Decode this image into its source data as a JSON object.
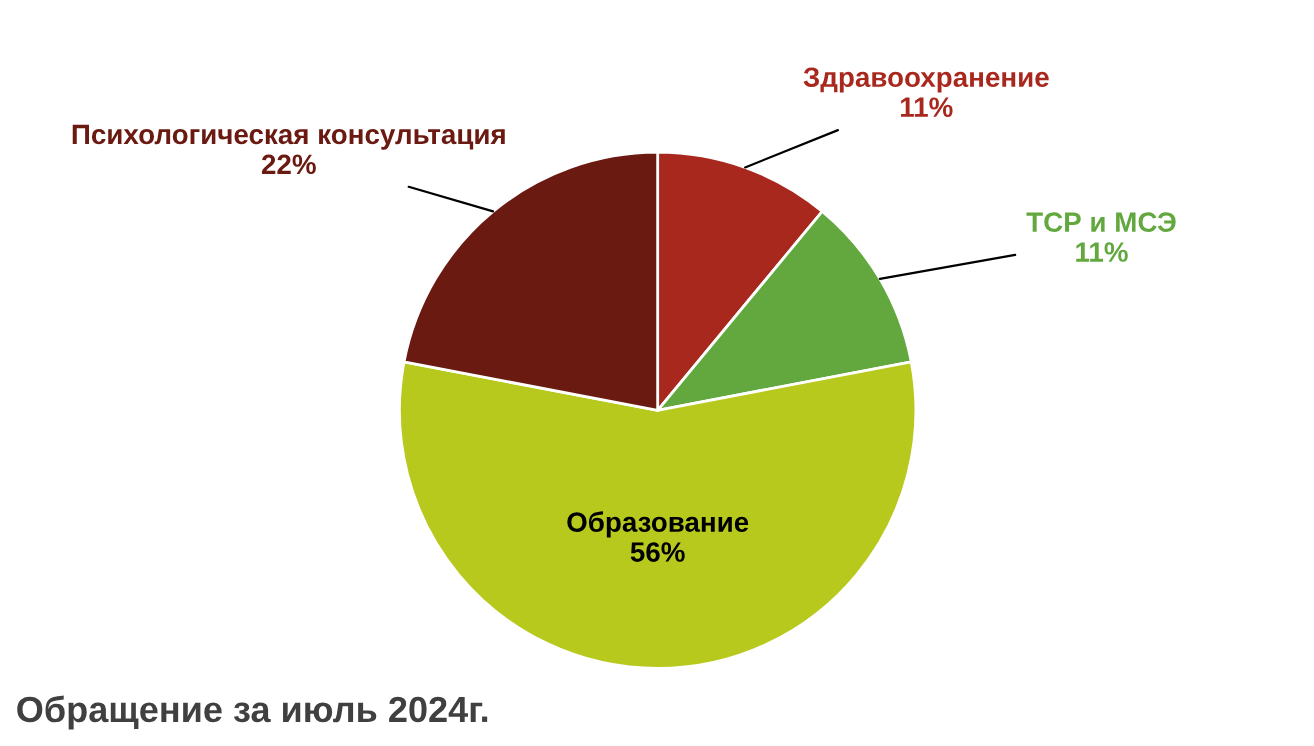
{
  "chart_data": {
    "type": "pie",
    "title": "Обращение за июль 2024г.",
    "categories": [
      "Здравоохранение",
      "ТСР и МСЭ",
      "Образование",
      "Психологическая консультация"
    ],
    "values": [
      11,
      11,
      56,
      22
    ],
    "colors": [
      "#a9281e",
      "#62a83f",
      "#b8c91e",
      "#6b1a12"
    ],
    "value_labels": [
      "11%",
      "11%",
      "56%",
      "22%"
    ],
    "legend": false
  }
}
